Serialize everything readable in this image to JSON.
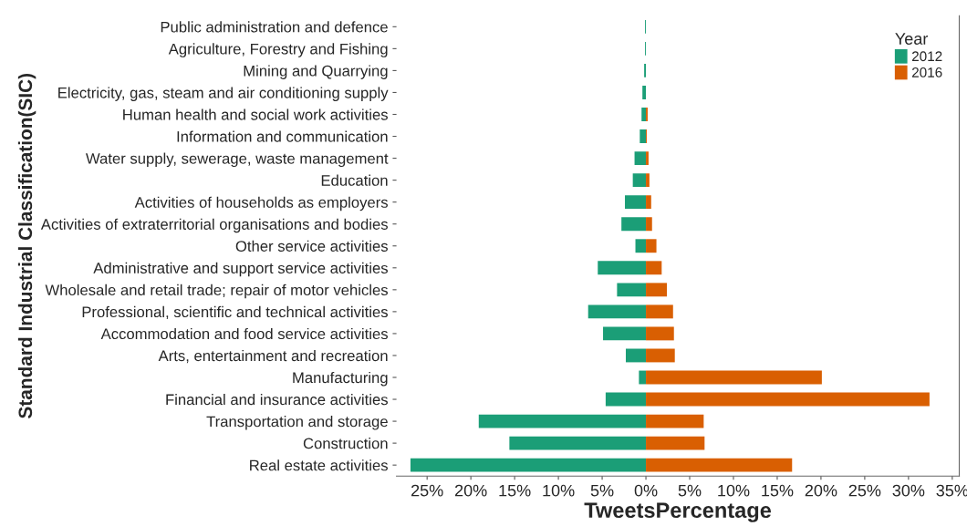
{
  "chart_data": {
    "type": "bar",
    "orientation": "horizontal",
    "stacked": true,
    "xlabel": "TweetsPercentage",
    "ylabel": "Standard Industrial Classification(SIC)",
    "legend_title": "Year",
    "categories": [
      "Public administration and defence",
      "Agriculture, Forestry and Fishing",
      "Mining and Quarrying",
      "Electricity, gas, steam and air conditioning supply",
      "Human health and social work activities",
      "Information and communication",
      "Water supply, sewerage, waste management",
      "Education",
      "Activities of households as employers",
      "Activities of extraterritorial organisations and bodies",
      "Other service activities",
      "Administrative and support service activities",
      "Wholesale and retail trade; repair of motor vehicles",
      "Professional, scientific and technical activities",
      "Accommodation and food service activities",
      "Arts, entertainment and recreation",
      "Manufacturing",
      "Financial and insurance activities",
      "Transportation and storage",
      "Construction",
      "Real estate activities"
    ],
    "series": [
      {
        "name": "2012",
        "color": "#1b9e77",
        "values": [
          -0.1,
          -0.1,
          -0.2,
          -0.4,
          -0.5,
          -0.7,
          -1.3,
          -1.5,
          -2.4,
          -2.8,
          -1.2,
          -5.5,
          -3.3,
          -6.6,
          -4.9,
          -2.3,
          -0.8,
          -4.6,
          -19.1,
          -15.6,
          -26.9
        ]
      },
      {
        "name": "2016",
        "color": "#d95f02",
        "values": [
          0,
          0,
          0,
          0,
          0.2,
          0.1,
          0.3,
          0.4,
          0.6,
          0.7,
          1.2,
          1.8,
          2.4,
          3.1,
          3.2,
          3.3,
          20.1,
          32.4,
          6.6,
          6.7,
          16.7
        ]
      }
    ],
    "xlim": [
      -28.5,
      35.8
    ],
    "xticks": [
      {
        "value": -25,
        "label": "25%"
      },
      {
        "value": -20,
        "label": "20%"
      },
      {
        "value": -15,
        "label": "15%"
      },
      {
        "value": -10,
        "label": "10%"
      },
      {
        "value": -5,
        "label": "5%"
      },
      {
        "value": 0,
        "label": "0%"
      },
      {
        "value": 5,
        "label": "5%"
      },
      {
        "value": 10,
        "label": "10%"
      },
      {
        "value": 15,
        "label": "15%"
      },
      {
        "value": 20,
        "label": "20%"
      },
      {
        "value": 25,
        "label": "25%"
      },
      {
        "value": 30,
        "label": "30%"
      },
      {
        "value": 35,
        "label": "35%"
      }
    ],
    "legend": "top right",
    "grid": false
  }
}
